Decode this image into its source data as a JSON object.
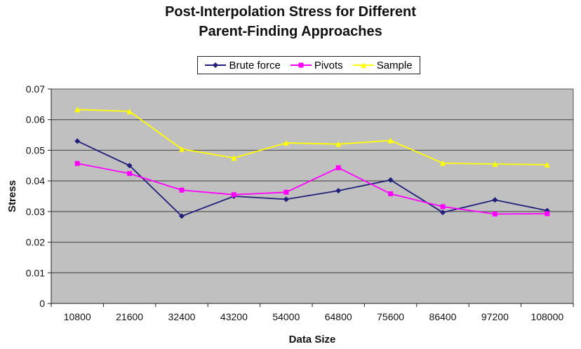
{
  "chart_data": {
    "type": "line",
    "title": "Post-Interpolation Stress for Different Parent-Finding Approaches",
    "title_lines": [
      "Post-Interpolation Stress for Different",
      "Parent-Finding Approaches"
    ],
    "xlabel": "Data Size",
    "ylabel": "Stress",
    "categories": [
      "10800",
      "21600",
      "32400",
      "43200",
      "54000",
      "64800",
      "75600",
      "86400",
      "97200",
      "108000"
    ],
    "ylim": [
      0,
      0.07
    ],
    "yticks": [
      "0",
      "0.01",
      "0.02",
      "0.03",
      "0.04",
      "0.05",
      "0.06",
      "0.07"
    ],
    "grid": true,
    "legend_position": "top-center",
    "series": [
      {
        "name": "Brute force",
        "color": "#1f1f7a",
        "marker": "diamond",
        "values": [
          0.053,
          0.045,
          0.0285,
          0.035,
          0.034,
          0.0368,
          0.0403,
          0.0297,
          0.0338,
          0.0303
        ]
      },
      {
        "name": "Pivots",
        "color": "#ff00ff",
        "marker": "square",
        "values": [
          0.0457,
          0.0424,
          0.037,
          0.0355,
          0.0363,
          0.0443,
          0.0358,
          0.0316,
          0.0292,
          0.0293
        ]
      },
      {
        "name": "Sample",
        "color": "#ffff00",
        "marker": "triangle",
        "values": [
          0.0633,
          0.0627,
          0.0504,
          0.0475,
          0.0524,
          0.052,
          0.0532,
          0.0458,
          0.0455,
          0.0453
        ]
      }
    ],
    "plot_background": "#c0c0c0"
  }
}
